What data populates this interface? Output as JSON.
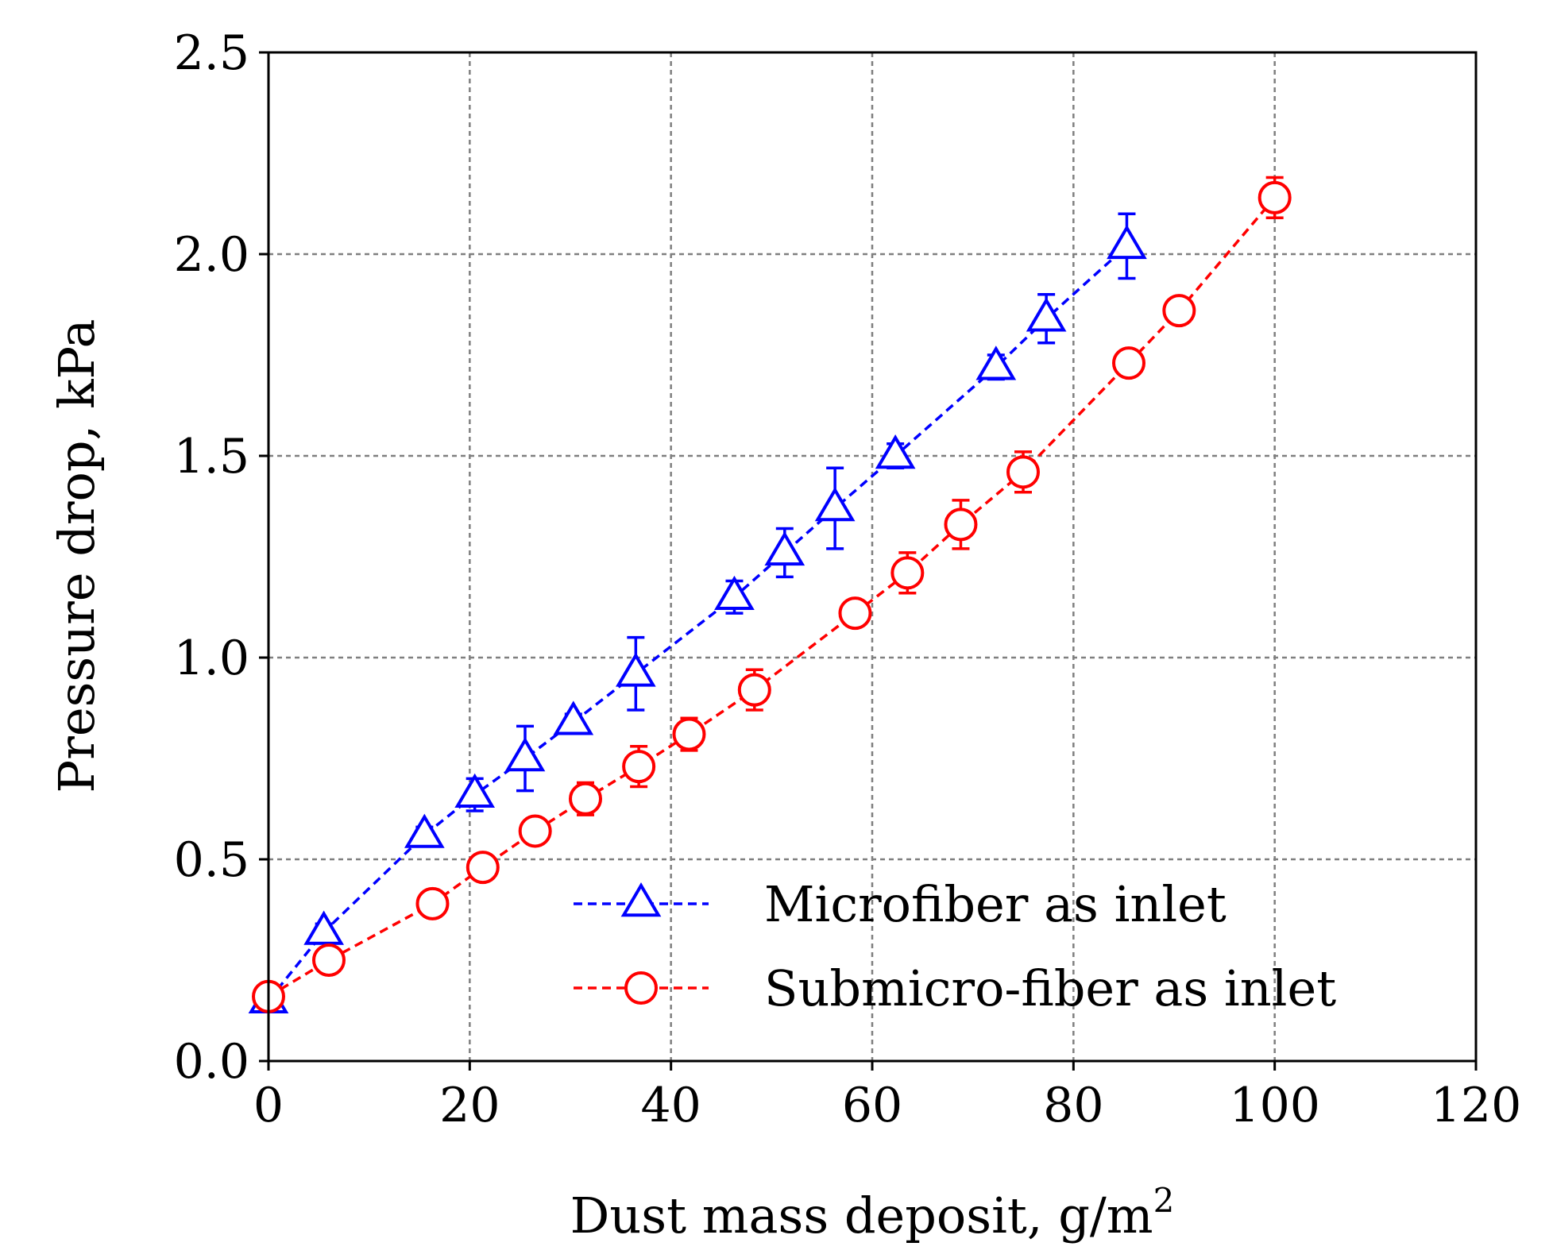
{
  "chart_data": {
    "type": "scatter",
    "title": "",
    "xlabel": "Dust mass deposit, g/m",
    "xlabel_superscript": "2",
    "ylabel": "Pressure drop, kPa",
    "xlim": [
      0,
      120
    ],
    "ylim": [
      0,
      2.5
    ],
    "xticks": [
      0,
      20,
      40,
      60,
      80,
      100,
      120
    ],
    "yticks": [
      0.0,
      0.5,
      1.0,
      1.5,
      2.0,
      2.5
    ],
    "xtick_labels": [
      "0",
      "20",
      "40",
      "60",
      "80",
      "100",
      "120"
    ],
    "ytick_labels": [
      "0.0",
      "0.5",
      "1.0",
      "1.5",
      "2.0",
      "2.5"
    ],
    "grid": true,
    "legend_position": "lower-right",
    "series": [
      {
        "name": "Microfiber as inlet",
        "color": "#0000ff",
        "marker": "triangle",
        "linestyle": "dashed",
        "x": [
          0,
          5.5,
          15.5,
          20.5,
          25.5,
          30.3,
          36.5,
          46.3,
          51.3,
          56.3,
          62.3,
          72.3,
          77.3,
          85.3
        ],
        "y": [
          0.15,
          0.32,
          0.56,
          0.66,
          0.75,
          0.84,
          0.96,
          1.15,
          1.26,
          1.37,
          1.5,
          1.72,
          1.84,
          2.02
        ],
        "err": [
          0.02,
          0.02,
          0.02,
          0.04,
          0.08,
          0.02,
          0.09,
          0.04,
          0.06,
          0.1,
          0.03,
          0.03,
          0.06,
          0.08
        ]
      },
      {
        "name": "Submicro-fiber as inlet",
        "color": "#ff0000",
        "marker": "circle",
        "linestyle": "dashed",
        "x": [
          0,
          6.0,
          16.3,
          21.3,
          26.5,
          31.5,
          36.8,
          41.8,
          48.3,
          58.3,
          63.5,
          68.8,
          75.0,
          85.5,
          90.5,
          100.0
        ],
        "y": [
          0.16,
          0.25,
          0.39,
          0.48,
          0.57,
          0.65,
          0.73,
          0.81,
          0.92,
          1.11,
          1.21,
          1.33,
          1.46,
          1.73,
          1.86,
          2.14
        ],
        "err": [
          0.02,
          0.02,
          0.02,
          0.02,
          0.03,
          0.04,
          0.05,
          0.04,
          0.05,
          0.02,
          0.05,
          0.06,
          0.05,
          0.02,
          0.02,
          0.05
        ]
      }
    ]
  }
}
